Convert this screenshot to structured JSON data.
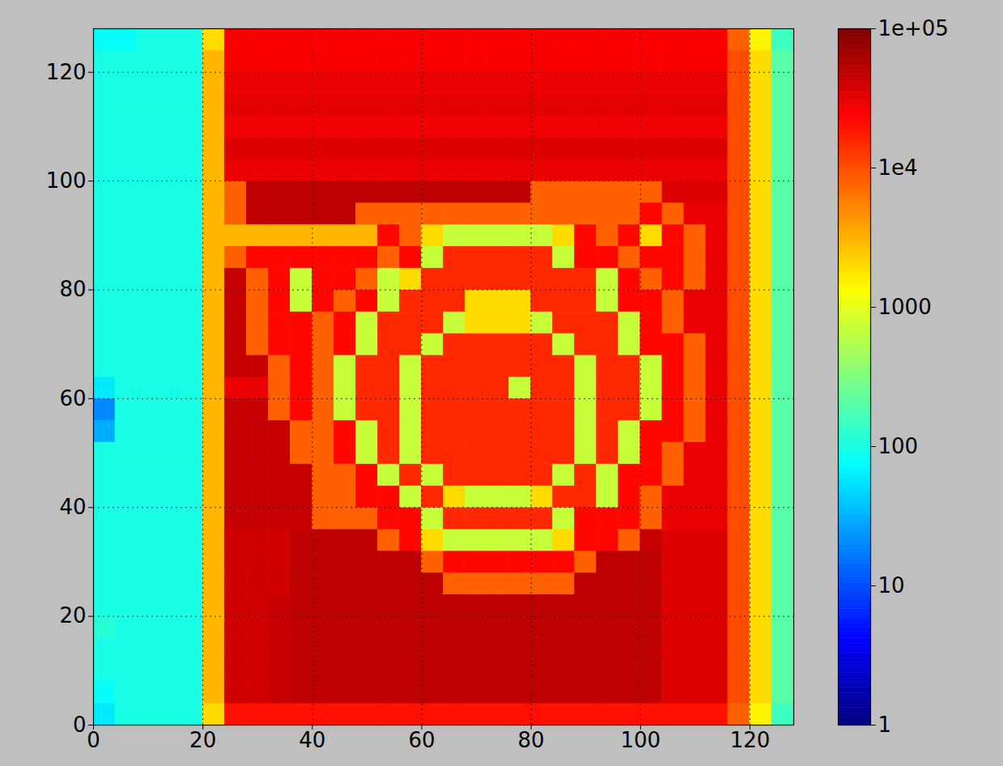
{
  "chart_data": {
    "type": "heatmap",
    "xlim": [
      0,
      128
    ],
    "ylim": [
      0,
      128
    ],
    "xticks": [
      0,
      20,
      40,
      60,
      80,
      100,
      120
    ],
    "yticks": [
      0,
      20,
      40,
      60,
      80,
      100,
      120
    ],
    "grid": true,
    "x_edges": [
      0,
      4,
      8,
      12,
      16,
      20,
      24,
      28,
      32,
      36,
      40,
      44,
      48,
      52,
      56,
      60,
      64,
      68,
      72,
      76,
      80,
      84,
      88,
      92,
      96,
      100,
      104,
      108,
      112,
      116,
      120,
      124,
      128
    ],
    "y_edges": [
      0,
      4,
      8,
      12,
      16,
      20,
      24,
      28,
      32,
      36,
      40,
      44,
      48,
      52,
      56,
      60,
      64,
      68,
      72,
      76,
      80,
      84,
      88,
      92,
      96,
      100,
      104,
      108,
      112,
      116,
      120,
      124,
      128
    ],
    "cells": [
      [
        60,
        100,
        100,
        100,
        100,
        2000,
        20000,
        20000,
        20000,
        20000,
        20000,
        20000,
        20000,
        20000,
        20000,
        20000,
        20000,
        20000,
        20000,
        20000,
        20000,
        20000,
        20000,
        20000,
        20000,
        20000,
        20000,
        20000,
        20000,
        8000,
        1500,
        150
      ],
      [
        80,
        100,
        100,
        100,
        100,
        3000,
        40000,
        40000,
        45000,
        50000,
        50000,
        50000,
        50000,
        50000,
        50000,
        50000,
        50000,
        50000,
        50000,
        50000,
        50000,
        50000,
        50000,
        50000,
        50000,
        50000,
        35000,
        35000,
        35000,
        10000,
        2000,
        200
      ],
      [
        100,
        100,
        100,
        100,
        100,
        3000,
        40000,
        40000,
        45000,
        50000,
        50000,
        50000,
        50000,
        50000,
        50000,
        50000,
        50000,
        50000,
        50000,
        50000,
        50000,
        50000,
        50000,
        50000,
        50000,
        50000,
        35000,
        35000,
        35000,
        10000,
        2000,
        200
      ],
      [
        100,
        100,
        100,
        100,
        100,
        3000,
        40000,
        40000,
        45000,
        50000,
        50000,
        50000,
        50000,
        50000,
        50000,
        50000,
        50000,
        50000,
        50000,
        50000,
        50000,
        50000,
        50000,
        50000,
        50000,
        50000,
        35000,
        35000,
        35000,
        10000,
        2000,
        200
      ],
      [
        120,
        100,
        100,
        100,
        100,
        3000,
        40000,
        40000,
        45000,
        50000,
        50000,
        50000,
        50000,
        50000,
        50000,
        50000,
        50000,
        50000,
        50000,
        50000,
        50000,
        50000,
        50000,
        50000,
        50000,
        50000,
        35000,
        35000,
        35000,
        10000,
        2000,
        200
      ],
      [
        100,
        100,
        100,
        100,
        100,
        3000,
        40000,
        40000,
        45000,
        50000,
        50000,
        50000,
        50000,
        50000,
        50000,
        50000,
        50000,
        50000,
        50000,
        50000,
        50000,
        50000,
        50000,
        50000,
        50000,
        50000,
        35000,
        35000,
        35000,
        10000,
        2000,
        200
      ],
      [
        100,
        100,
        100,
        100,
        100,
        3000,
        40000,
        40000,
        40000,
        50000,
        50000,
        50000,
        50000,
        50000,
        50000,
        50000,
        8000,
        8000,
        8000,
        8000,
        8000,
        8000,
        50000,
        50000,
        50000,
        50000,
        35000,
        35000,
        35000,
        10000,
        2000,
        200
      ],
      [
        100,
        100,
        100,
        100,
        100,
        3000,
        40000,
        40000,
        40000,
        50000,
        50000,
        50000,
        50000,
        50000,
        50000,
        8000,
        22000,
        22000,
        22000,
        22000,
        22000,
        22000,
        8000,
        50000,
        50000,
        50000,
        35000,
        35000,
        35000,
        10000,
        2000,
        200
      ],
      [
        100,
        100,
        100,
        100,
        100,
        3000,
        40000,
        40000,
        40000,
        50000,
        50000,
        50000,
        50000,
        8000,
        22000,
        2000,
        700,
        700,
        700,
        700,
        700,
        2000,
        22000,
        22000,
        8000,
        45000,
        35000,
        35000,
        35000,
        10000,
        2000,
        200
      ],
      [
        100,
        100,
        100,
        100,
        100,
        3000,
        45000,
        45000,
        45000,
        45000,
        8000,
        8000,
        8000,
        22000,
        22000,
        700,
        15000,
        15000,
        15000,
        15000,
        15000,
        700,
        22000,
        22000,
        22000,
        8000,
        30000,
        30000,
        30000,
        10000,
        2000,
        200
      ],
      [
        100,
        100,
        100,
        100,
        100,
        3000,
        45000,
        45000,
        45000,
        45000,
        8000,
        8000,
        22000,
        22000,
        700,
        15000,
        2000,
        700,
        700,
        700,
        2000,
        15000,
        15000,
        700,
        22000,
        8000,
        30000,
        30000,
        30000,
        10000,
        2000,
        200
      ],
      [
        100,
        100,
        100,
        100,
        100,
        3000,
        45000,
        45000,
        45000,
        45000,
        8000,
        8000,
        22000,
        700,
        15000,
        700,
        15000,
        15000,
        15000,
        15000,
        15000,
        700,
        15000,
        700,
        22000,
        22000,
        8000,
        30000,
        30000,
        10000,
        2000,
        200
      ],
      [
        100,
        100,
        100,
        100,
        100,
        3000,
        45000,
        45000,
        45000,
        8000,
        8000,
        22000,
        700,
        15000,
        700,
        15000,
        15000,
        15000,
        15000,
        15000,
        15000,
        15000,
        700,
        15000,
        700,
        22000,
        8000,
        30000,
        30000,
        10000,
        2000,
        200
      ],
      [
        30,
        100,
        100,
        100,
        100,
        3000,
        45000,
        45000,
        45000,
        8000,
        8000,
        22000,
        700,
        15000,
        700,
        15000,
        15000,
        15000,
        15000,
        15000,
        15000,
        15000,
        700,
        15000,
        700,
        22000,
        22000,
        8000,
        30000,
        10000,
        2000,
        200
      ],
      [
        20,
        100,
        100,
        100,
        100,
        3000,
        45000,
        45000,
        8000,
        22000,
        8000,
        700,
        15000,
        15000,
        700,
        15000,
        15000,
        15000,
        15000,
        15000,
        15000,
        15000,
        700,
        15000,
        15000,
        700,
        22000,
        8000,
        30000,
        10000,
        2000,
        200
      ],
      [
        60,
        100,
        100,
        100,
        100,
        3000,
        30000,
        30000,
        8000,
        22000,
        8000,
        700,
        15000,
        15000,
        700,
        15000,
        15000,
        15000,
        15000,
        700,
        15000,
        15000,
        700,
        15000,
        15000,
        700,
        22000,
        8000,
        30000,
        10000,
        2000,
        200
      ],
      [
        100,
        100,
        100,
        100,
        100,
        3000,
        45000,
        45000,
        8000,
        22000,
        8000,
        700,
        15000,
        15000,
        700,
        15000,
        15000,
        15000,
        15000,
        15000,
        15000,
        15000,
        700,
        15000,
        15000,
        700,
        22000,
        8000,
        30000,
        10000,
        2000,
        200
      ],
      [
        100,
        100,
        100,
        100,
        100,
        3000,
        45000,
        8000,
        22000,
        22000,
        8000,
        22000,
        700,
        15000,
        15000,
        700,
        15000,
        15000,
        15000,
        15000,
        15000,
        700,
        15000,
        15000,
        700,
        22000,
        22000,
        8000,
        30000,
        10000,
        2000,
        200
      ],
      [
        100,
        100,
        100,
        100,
        100,
        3000,
        45000,
        8000,
        22000,
        22000,
        8000,
        22000,
        700,
        15000,
        15000,
        15000,
        700,
        2000,
        2000,
        2000,
        700,
        15000,
        15000,
        15000,
        700,
        22000,
        8000,
        30000,
        30000,
        10000,
        2000,
        200
      ],
      [
        100,
        100,
        100,
        100,
        100,
        3000,
        45000,
        8000,
        22000,
        700,
        22000,
        8000,
        22000,
        700,
        15000,
        15000,
        15000,
        2000,
        2000,
        2000,
        15000,
        15000,
        15000,
        700,
        22000,
        22000,
        8000,
        30000,
        30000,
        10000,
        2000,
        200
      ],
      [
        100,
        100,
        100,
        100,
        100,
        3000,
        45000,
        8000,
        22000,
        700,
        22000,
        22000,
        8000,
        700,
        2000,
        15000,
        15000,
        15000,
        15000,
        15000,
        15000,
        15000,
        15000,
        700,
        22000,
        8000,
        22000,
        8000,
        30000,
        10000,
        2000,
        200
      ],
      [
        100,
        100,
        100,
        100,
        100,
        3000,
        8000,
        22000,
        22000,
        22000,
        22000,
        22000,
        22000,
        8000,
        22000,
        700,
        15000,
        15000,
        15000,
        15000,
        15000,
        700,
        22000,
        22000,
        8000,
        22000,
        22000,
        8000,
        30000,
        10000,
        2000,
        200
      ],
      [
        100,
        100,
        100,
        100,
        100,
        3000,
        3000,
        3000,
        3000,
        3000,
        3000,
        3000,
        3000,
        22000,
        8000,
        2000,
        700,
        700,
        700,
        700,
        700,
        2000,
        22000,
        8000,
        22000,
        2000,
        22000,
        8000,
        30000,
        10000,
        2000,
        200
      ],
      [
        100,
        100,
        100,
        100,
        100,
        3000,
        8000,
        50000,
        50000,
        50000,
        50000,
        50000,
        8000,
        8000,
        8000,
        8000,
        8000,
        8000,
        8000,
        8000,
        8000,
        8000,
        8000,
        8000,
        8000,
        22000,
        8000,
        30000,
        30000,
        10000,
        2000,
        200
      ],
      [
        100,
        100,
        100,
        100,
        100,
        3000,
        8000,
        50000,
        50000,
        50000,
        50000,
        50000,
        50000,
        50000,
        50000,
        50000,
        50000,
        50000,
        50000,
        50000,
        8000,
        8000,
        8000,
        8000,
        8000,
        8000,
        35000,
        35000,
        35000,
        10000,
        2000,
        200
      ],
      [
        100,
        100,
        100,
        100,
        100,
        3000,
        30000,
        30000,
        30000,
        30000,
        30000,
        30000,
        30000,
        30000,
        30000,
        30000,
        30000,
        30000,
        30000,
        30000,
        30000,
        30000,
        30000,
        30000,
        30000,
        30000,
        30000,
        30000,
        30000,
        10000,
        2000,
        200
      ],
      [
        100,
        100,
        100,
        100,
        100,
        3000,
        35000,
        35000,
        35000,
        35000,
        35000,
        35000,
        35000,
        35000,
        35000,
        35000,
        35000,
        35000,
        35000,
        35000,
        35000,
        35000,
        35000,
        35000,
        35000,
        35000,
        35000,
        35000,
        35000,
        10000,
        2000,
        200
      ],
      [
        100,
        100,
        100,
        100,
        100,
        3000,
        28000,
        28000,
        28000,
        28000,
        28000,
        28000,
        28000,
        28000,
        28000,
        28000,
        28000,
        28000,
        28000,
        28000,
        28000,
        28000,
        28000,
        28000,
        28000,
        28000,
        28000,
        28000,
        28000,
        10000,
        2000,
        200
      ],
      [
        100,
        100,
        100,
        100,
        100,
        3000,
        32000,
        32000,
        32000,
        32000,
        32000,
        32000,
        32000,
        32000,
        32000,
        32000,
        32000,
        32000,
        32000,
        32000,
        32000,
        32000,
        32000,
        32000,
        32000,
        32000,
        32000,
        32000,
        32000,
        10000,
        2000,
        200
      ],
      [
        100,
        100,
        100,
        100,
        100,
        3000,
        30000,
        30000,
        30000,
        30000,
        30000,
        30000,
        30000,
        30000,
        30000,
        30000,
        30000,
        30000,
        30000,
        30000,
        30000,
        30000,
        30000,
        30000,
        30000,
        30000,
        30000,
        30000,
        30000,
        10000,
        2000,
        200
      ],
      [
        100,
        100,
        100,
        100,
        100,
        3000,
        26000,
        26000,
        26000,
        26000,
        26000,
        26000,
        26000,
        26000,
        26000,
        26000,
        26000,
        26000,
        26000,
        26000,
        26000,
        26000,
        26000,
        26000,
        26000,
        26000,
        26000,
        26000,
        26000,
        10000,
        2000,
        200
      ],
      [
        80,
        80,
        100,
        100,
        100,
        2000,
        25000,
        25000,
        25000,
        25000,
        25000,
        25000,
        25000,
        25000,
        25000,
        25000,
        25000,
        25000,
        25000,
        25000,
        25000,
        25000,
        25000,
        25000,
        25000,
        25000,
        25000,
        25000,
        25000,
        8000,
        1500,
        150
      ]
    ],
    "colorbar": {
      "range": [
        1,
        100000
      ],
      "log": true,
      "color": "jet",
      "ticks": [
        1,
        10,
        100,
        1000,
        {
          "value": 10000,
          "label": "1e4"
        },
        {
          "value": 100000,
          "label": "1e+05"
        }
      ]
    }
  }
}
